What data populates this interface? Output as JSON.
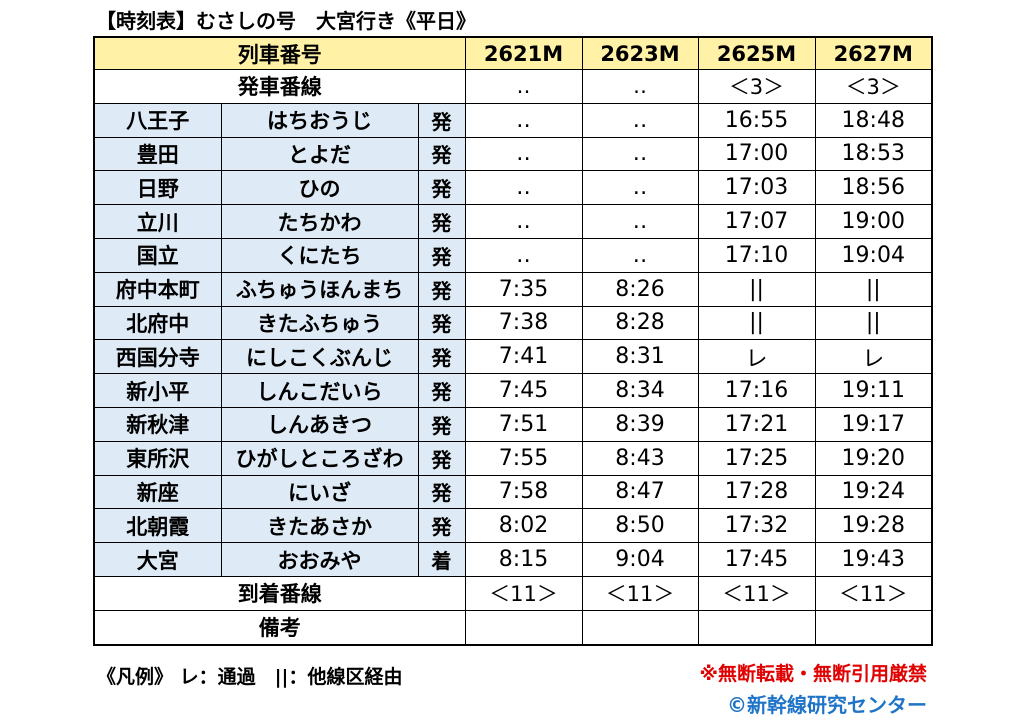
{
  "title": "【時刻表】むさしの号　大宮行き《平日》",
  "header": {
    "label": "列車番号",
    "trains": [
      "2621M",
      "2623M",
      "2625M",
      "2627M"
    ]
  },
  "departure_platform": {
    "label": "発車番線",
    "values": [
      "‥",
      "‥",
      "＜3＞",
      "＜3＞"
    ]
  },
  "stations": [
    {
      "name": "八王子",
      "kana": "はちおうじ",
      "type": "発",
      "times": [
        "‥",
        "‥",
        "16:55",
        "18:48"
      ]
    },
    {
      "name": "豊田",
      "kana": "とよだ",
      "type": "発",
      "times": [
        "‥",
        "‥",
        "17:00",
        "18:53"
      ]
    },
    {
      "name": "日野",
      "kana": "ひの",
      "type": "発",
      "times": [
        "‥",
        "‥",
        "17:03",
        "18:56"
      ]
    },
    {
      "name": "立川",
      "kana": "たちかわ",
      "type": "発",
      "times": [
        "‥",
        "‥",
        "17:07",
        "19:00"
      ]
    },
    {
      "name": "国立",
      "kana": "くにたち",
      "type": "発",
      "times": [
        "‥",
        "‥",
        "17:10",
        "19:04"
      ]
    },
    {
      "name": "府中本町",
      "kana": "ふちゅうほんまち",
      "type": "発",
      "times": [
        "7:35",
        "8:26",
        "||",
        "||"
      ]
    },
    {
      "name": "北府中",
      "kana": "きたふちゅう",
      "type": "発",
      "times": [
        "7:38",
        "8:28",
        "||",
        "||"
      ]
    },
    {
      "name": "西国分寺",
      "kana": "にしこくぶんじ",
      "type": "発",
      "times": [
        "7:41",
        "8:31",
        "レ",
        "レ"
      ]
    },
    {
      "name": "新小平",
      "kana": "しんこだいら",
      "type": "発",
      "times": [
        "7:45",
        "8:34",
        "17:16",
        "19:11"
      ]
    },
    {
      "name": "新秋津",
      "kana": "しんあきつ",
      "type": "発",
      "times": [
        "7:51",
        "8:39",
        "17:21",
        "19:17"
      ]
    },
    {
      "name": "東所沢",
      "kana": "ひがしところざわ",
      "type": "発",
      "times": [
        "7:55",
        "8:43",
        "17:25",
        "19:20"
      ]
    },
    {
      "name": "新座",
      "kana": "にいざ",
      "type": "発",
      "times": [
        "7:58",
        "8:47",
        "17:28",
        "19:24"
      ]
    },
    {
      "name": "北朝霞",
      "kana": "きたあさか",
      "type": "発",
      "times": [
        "8:02",
        "8:50",
        "17:32",
        "19:28"
      ]
    },
    {
      "name": "大宮",
      "kana": "おおみや",
      "type": "着",
      "times": [
        "8:15",
        "9:04",
        "17:45",
        "19:43"
      ]
    }
  ],
  "arrival_platform": {
    "label": "到着番線",
    "values": [
      "＜11＞",
      "＜11＞",
      "＜11＞",
      "＜11＞"
    ]
  },
  "remarks": {
    "label": "備考",
    "values": [
      "",
      "",
      "",
      ""
    ]
  },
  "legend": "《凡例》 レ：通過　||：他線区経由",
  "notice": "※無断転載・無断引用厳禁",
  "credit": "©新幹線研究センター"
}
